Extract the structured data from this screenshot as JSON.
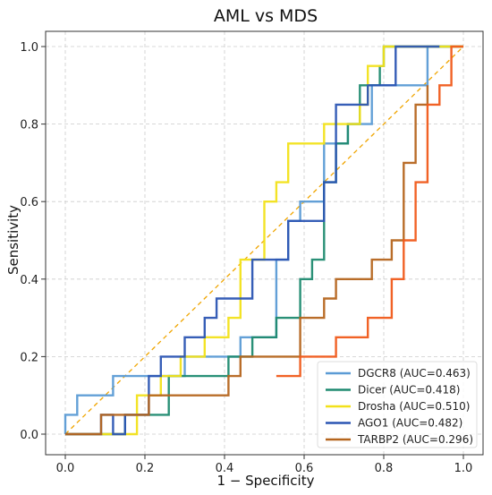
{
  "chart_data": {
    "type": "line",
    "title": "AML vs MDS",
    "xlabel": "1 − Specificity",
    "ylabel": "Sensitivity",
    "xlim": [
      0,
      1
    ],
    "ylim": [
      0,
      1
    ],
    "x_ticks": [
      "0.0",
      "0.2",
      "0.4",
      "0.6",
      "0.8",
      "1.0"
    ],
    "y_ticks": [
      "0.0",
      "0.2",
      "0.4",
      "0.6",
      "0.8",
      "1.0"
    ],
    "grid": true,
    "legend_position": "bottom-right",
    "diagonal": {
      "color": "#f0a500",
      "style": "dashed"
    },
    "series": [
      {
        "name": "DGCR8 (AUC=0.463)",
        "color": "#5b9bd5",
        "points": [
          [
            0,
            0
          ],
          [
            0,
            0.05
          ],
          [
            0.03,
            0.05
          ],
          [
            0.03,
            0.1
          ],
          [
            0.12,
            0.1
          ],
          [
            0.12,
            0.15
          ],
          [
            0.3,
            0.15
          ],
          [
            0.3,
            0.2
          ],
          [
            0.44,
            0.2
          ],
          [
            0.44,
            0.25
          ],
          [
            0.53,
            0.25
          ],
          [
            0.53,
            0.45
          ],
          [
            0.56,
            0.45
          ],
          [
            0.56,
            0.55
          ],
          [
            0.59,
            0.55
          ],
          [
            0.59,
            0.6
          ],
          [
            0.65,
            0.6
          ],
          [
            0.65,
            0.75
          ],
          [
            0.71,
            0.75
          ],
          [
            0.71,
            0.8
          ],
          [
            0.77,
            0.8
          ],
          [
            0.77,
            0.9
          ],
          [
            0.91,
            0.9
          ],
          [
            0.91,
            1.0
          ],
          [
            1.0,
            1.0
          ]
        ]
      },
      {
        "name": "Dicer (AUC=0.418)",
        "color": "#1f8a70",
        "points": [
          [
            0,
            0
          ],
          [
            0.15,
            0
          ],
          [
            0.15,
            0.05
          ],
          [
            0.26,
            0.05
          ],
          [
            0.26,
            0.15
          ],
          [
            0.41,
            0.15
          ],
          [
            0.41,
            0.2
          ],
          [
            0.47,
            0.2
          ],
          [
            0.47,
            0.25
          ],
          [
            0.53,
            0.25
          ],
          [
            0.53,
            0.3
          ],
          [
            0.59,
            0.3
          ],
          [
            0.59,
            0.4
          ],
          [
            0.62,
            0.4
          ],
          [
            0.62,
            0.45
          ],
          [
            0.65,
            0.45
          ],
          [
            0.65,
            0.65
          ],
          [
            0.68,
            0.65
          ],
          [
            0.68,
            0.75
          ],
          [
            0.71,
            0.75
          ],
          [
            0.71,
            0.8
          ],
          [
            0.74,
            0.8
          ],
          [
            0.74,
            0.9
          ],
          [
            0.79,
            0.9
          ],
          [
            0.79,
            0.95
          ],
          [
            0.8,
            0.95
          ],
          [
            0.8,
            1.0
          ],
          [
            1.0,
            1.0
          ]
        ]
      },
      {
        "name": "Drosha (AUC=0.510)",
        "color": "#f2e11a",
        "points": [
          [
            0,
            0
          ],
          [
            0.18,
            0
          ],
          [
            0.18,
            0.1
          ],
          [
            0.24,
            0.1
          ],
          [
            0.24,
            0.15
          ],
          [
            0.29,
            0.15
          ],
          [
            0.29,
            0.2
          ],
          [
            0.35,
            0.2
          ],
          [
            0.35,
            0.25
          ],
          [
            0.41,
            0.25
          ],
          [
            0.41,
            0.3
          ],
          [
            0.44,
            0.3
          ],
          [
            0.44,
            0.45
          ],
          [
            0.5,
            0.45
          ],
          [
            0.5,
            0.6
          ],
          [
            0.53,
            0.6
          ],
          [
            0.53,
            0.65
          ],
          [
            0.56,
            0.65
          ],
          [
            0.56,
            0.75
          ],
          [
            0.65,
            0.75
          ],
          [
            0.65,
            0.8
          ],
          [
            0.74,
            0.8
          ],
          [
            0.74,
            0.85
          ],
          [
            0.76,
            0.85
          ],
          [
            0.76,
            0.95
          ],
          [
            0.8,
            0.95
          ],
          [
            0.8,
            1.0
          ],
          [
            1.0,
            1.0
          ]
        ]
      },
      {
        "name": "AGO1 (AUC=0.482)",
        "color": "#2b55b3",
        "points": [
          [
            0,
            0
          ],
          [
            0.09,
            0
          ],
          [
            0.09,
            0.05
          ],
          [
            0.12,
            0.05
          ],
          [
            0.12,
            0
          ],
          [
            0.15,
            0
          ],
          [
            0.15,
            0.05
          ],
          [
            0.21,
            0.05
          ],
          [
            0.21,
            0.15
          ],
          [
            0.24,
            0.15
          ],
          [
            0.24,
            0.2
          ],
          [
            0.3,
            0.2
          ],
          [
            0.3,
            0.25
          ],
          [
            0.35,
            0.25
          ],
          [
            0.35,
            0.3
          ],
          [
            0.38,
            0.3
          ],
          [
            0.38,
            0.35
          ],
          [
            0.47,
            0.35
          ],
          [
            0.47,
            0.45
          ],
          [
            0.56,
            0.45
          ],
          [
            0.56,
            0.55
          ],
          [
            0.65,
            0.55
          ],
          [
            0.65,
            0.65
          ],
          [
            0.68,
            0.65
          ],
          [
            0.68,
            0.85
          ],
          [
            0.76,
            0.85
          ],
          [
            0.76,
            0.9
          ],
          [
            0.83,
            0.9
          ],
          [
            0.83,
            1.0
          ],
          [
            0.94,
            1.0
          ]
        ]
      },
      {
        "name": "TARBP2 (AUC=0.296)",
        "color": "#b5651d",
        "points": [
          [
            0,
            0
          ],
          [
            0.09,
            0
          ],
          [
            0.09,
            0.05
          ],
          [
            0.21,
            0.05
          ],
          [
            0.21,
            0.1
          ],
          [
            0.41,
            0.1
          ],
          [
            0.41,
            0.15
          ],
          [
            0.44,
            0.15
          ],
          [
            0.44,
            0.2
          ],
          [
            0.59,
            0.2
          ],
          [
            0.59,
            0.3
          ],
          [
            0.65,
            0.3
          ],
          [
            0.65,
            0.35
          ],
          [
            0.68,
            0.35
          ],
          [
            0.68,
            0.4
          ],
          [
            0.77,
            0.4
          ],
          [
            0.77,
            0.45
          ],
          [
            0.82,
            0.45
          ],
          [
            0.82,
            0.5
          ],
          [
            0.85,
            0.5
          ],
          [
            0.85,
            0.7
          ],
          [
            0.88,
            0.7
          ],
          [
            0.88,
            0.85
          ],
          [
            0.91,
            0.85
          ],
          [
            0.91,
            0.9
          ]
        ]
      },
      {
        "name": "",
        "color": "#f05a1a",
        "points": [
          [
            0.53,
            0.15
          ],
          [
            0.59,
            0.15
          ],
          [
            0.59,
            0.2
          ],
          [
            0.68,
            0.2
          ],
          [
            0.68,
            0.25
          ],
          [
            0.76,
            0.25
          ],
          [
            0.76,
            0.3
          ],
          [
            0.82,
            0.3
          ],
          [
            0.82,
            0.4
          ],
          [
            0.85,
            0.4
          ],
          [
            0.85,
            0.5
          ],
          [
            0.88,
            0.5
          ],
          [
            0.88,
            0.65
          ],
          [
            0.91,
            0.65
          ],
          [
            0.91,
            0.85
          ],
          [
            0.94,
            0.85
          ],
          [
            0.94,
            0.9
          ],
          [
            0.97,
            0.9
          ],
          [
            0.97,
            1.0
          ],
          [
            1.0,
            1.0
          ]
        ]
      }
    ]
  }
}
